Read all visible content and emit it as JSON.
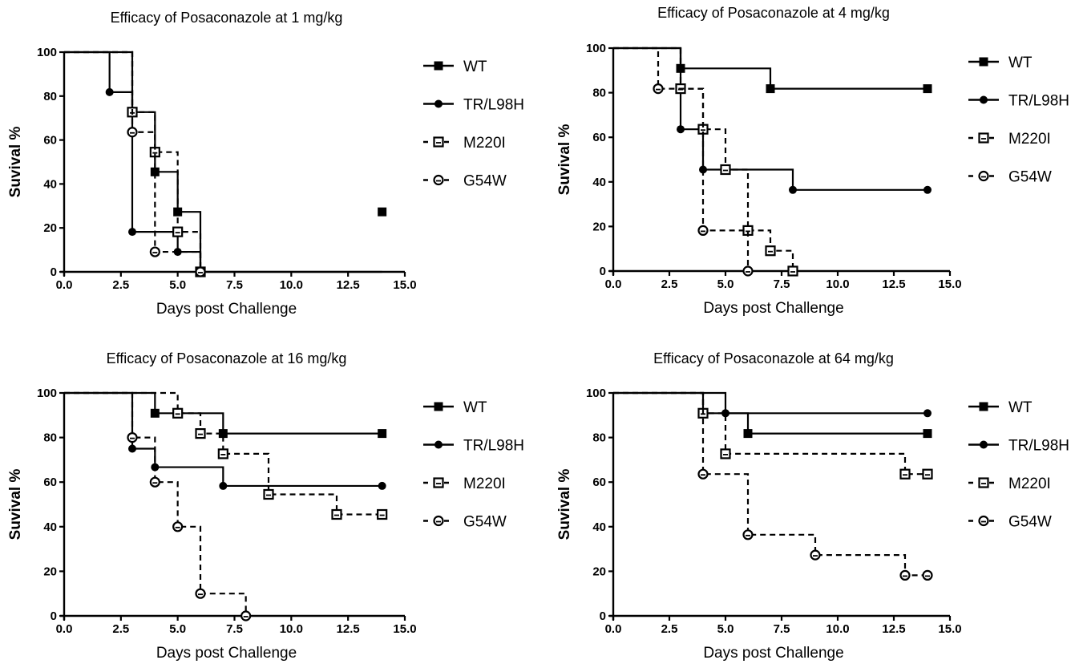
{
  "chart_data": [
    {
      "type": "line",
      "step": true,
      "title": "Efficacy of Posaconazole at 1 mg/kg",
      "xlabel": "Days post Challenge",
      "ylabel": "Suvival %",
      "xlim": [
        0,
        15
      ],
      "ylim": [
        0,
        100
      ],
      "xticks": [
        "0.0",
        "2.5",
        "5.0",
        "7.5",
        "10.0",
        "12.5",
        "15.0"
      ],
      "yticks": [
        "0",
        "20",
        "40",
        "60",
        "80",
        "100"
      ],
      "legend_position": "right",
      "grid": false,
      "series": [
        {
          "name": "WT",
          "style": "solid",
          "marker": "filled-square",
          "x": [
            0,
            3,
            4,
            5,
            6
          ],
          "y": [
            100,
            72.7,
            45.5,
            27.3,
            0
          ]
        },
        {
          "name": "TR/L98H",
          "style": "solid",
          "marker": "filled-circle",
          "x": [
            0,
            2,
            3,
            5,
            6
          ],
          "y": [
            100,
            81.8,
            18.2,
            9.1,
            0
          ]
        },
        {
          "name": "M220I",
          "style": "dashed",
          "marker": "open-square",
          "x": [
            0,
            3,
            4,
            5,
            6
          ],
          "y": [
            100,
            72.7,
            54.5,
            18.2,
            0
          ]
        },
        {
          "name": "G54W",
          "style": "dashed",
          "marker": "open-circle",
          "x": [
            0,
            3,
            4,
            6
          ],
          "y": [
            100,
            63.6,
            9.1,
            0
          ]
        }
      ],
      "extra_markers": [
        {
          "series": 0,
          "x": 14,
          "y": 27.3
        }
      ]
    },
    {
      "type": "line",
      "step": true,
      "title": "Efficacy of Posaconazole at 4 mg/kg",
      "xlabel": "Days post Challenge",
      "ylabel": "Suvival %",
      "xlim": [
        0,
        15
      ],
      "ylim": [
        0,
        100
      ],
      "xticks": [
        "0.0",
        "2.5",
        "5.0",
        "7.5",
        "10.0",
        "12.5",
        "15.0"
      ],
      "yticks": [
        "0",
        "20",
        "40",
        "60",
        "80",
        "100"
      ],
      "legend_position": "right",
      "grid": false,
      "series": [
        {
          "name": "WT",
          "style": "solid",
          "marker": "filled-square",
          "x": [
            0,
            3,
            7
          ],
          "y": [
            100,
            90.9,
            81.8
          ]
        },
        {
          "name": "TR/L98H",
          "style": "solid",
          "marker": "filled-circle",
          "x": [
            0,
            3,
            4,
            8
          ],
          "y": [
            100,
            63.6,
            45.5,
            36.4
          ]
        },
        {
          "name": "M220I",
          "style": "dashed",
          "marker": "open-square",
          "x": [
            0,
            3,
            4,
            5,
            6,
            7,
            8
          ],
          "y": [
            100,
            81.8,
            63.6,
            45.5,
            18.2,
            9.1,
            0
          ]
        },
        {
          "name": "G54W",
          "style": "dashed",
          "marker": "open-circle",
          "x": [
            0,
            2,
            4,
            6
          ],
          "y": [
            100,
            81.8,
            18.2,
            0
          ]
        }
      ],
      "extra_markers": [
        {
          "series": 0,
          "x": 14,
          "y": 81.8
        },
        {
          "series": 1,
          "x": 14,
          "y": 36.4
        }
      ]
    },
    {
      "type": "line",
      "step": true,
      "title": "Efficacy of Posaconazole at 16 mg/kg",
      "xlabel": "Days post Challenge",
      "ylabel": "Suvival %",
      "xlim": [
        0,
        15
      ],
      "ylim": [
        0,
        100
      ],
      "xticks": [
        "0.0",
        "2.5",
        "5.0",
        "7.5",
        "10.0",
        "12.5",
        "15.0"
      ],
      "yticks": [
        "0",
        "20",
        "40",
        "60",
        "80",
        "100"
      ],
      "legend_position": "right",
      "grid": false,
      "series": [
        {
          "name": "WT",
          "style": "solid",
          "marker": "filled-square",
          "x": [
            0,
            4,
            7
          ],
          "y": [
            100,
            90.9,
            81.8
          ]
        },
        {
          "name": "TR/L98H",
          "style": "solid",
          "marker": "filled-circle",
          "x": [
            0,
            3,
            4,
            7
          ],
          "y": [
            100,
            75,
            66.7,
            58.3
          ]
        },
        {
          "name": "M220I",
          "style": "dashed",
          "marker": "open-square",
          "x": [
            0,
            5,
            6,
            7,
            9,
            12
          ],
          "y": [
            100,
            90.9,
            81.8,
            72.7,
            54.5,
            45.5
          ]
        },
        {
          "name": "G54W",
          "style": "dashed",
          "marker": "open-circle",
          "x": [
            0,
            3,
            4,
            5,
            6,
            8
          ],
          "y": [
            100,
            80,
            60,
            40,
            10,
            0
          ]
        }
      ],
      "extra_markers": [
        {
          "series": 0,
          "x": 14,
          "y": 81.8
        },
        {
          "series": 1,
          "x": 14,
          "y": 58.3
        },
        {
          "series": 2,
          "x": 14,
          "y": 45.5
        }
      ]
    },
    {
      "type": "line",
      "step": true,
      "title": "Efficacy of Posaconazole at 64 mg/kg",
      "xlabel": "Days post Challenge",
      "ylabel": "Suvival %",
      "xlim": [
        0,
        15
      ],
      "ylim": [
        0,
        100
      ],
      "xticks": [
        "0.0",
        "2.5",
        "5.0",
        "7.5",
        "10.0",
        "12.5",
        "15.0"
      ],
      "yticks": [
        "0",
        "20",
        "40",
        "60",
        "80",
        "100"
      ],
      "legend_position": "right",
      "grid": false,
      "series": [
        {
          "name": "WT",
          "style": "solid",
          "marker": "filled-square",
          "x": [
            0,
            4,
            6
          ],
          "y": [
            100,
            90.9,
            81.8
          ]
        },
        {
          "name": "TR/L98H",
          "style": "solid",
          "marker": "filled-circle",
          "x": [
            0,
            5
          ],
          "y": [
            100,
            90.9
          ]
        },
        {
          "name": "M220I",
          "style": "dashed",
          "marker": "open-square",
          "x": [
            0,
            4,
            5,
            13
          ],
          "y": [
            100,
            90.9,
            72.7,
            63.6
          ]
        },
        {
          "name": "G54W",
          "style": "dashed",
          "marker": "open-circle",
          "x": [
            0,
            4,
            6,
            9,
            13
          ],
          "y": [
            100,
            63.6,
            36.4,
            27.3,
            18.2
          ]
        }
      ],
      "extra_markers": [
        {
          "series": 0,
          "x": 14,
          "y": 81.8
        },
        {
          "series": 1,
          "x": 14,
          "y": 90.9
        },
        {
          "series": 2,
          "x": 14,
          "y": 63.6
        },
        {
          "series": 3,
          "x": 14,
          "y": 18.2
        }
      ]
    }
  ]
}
